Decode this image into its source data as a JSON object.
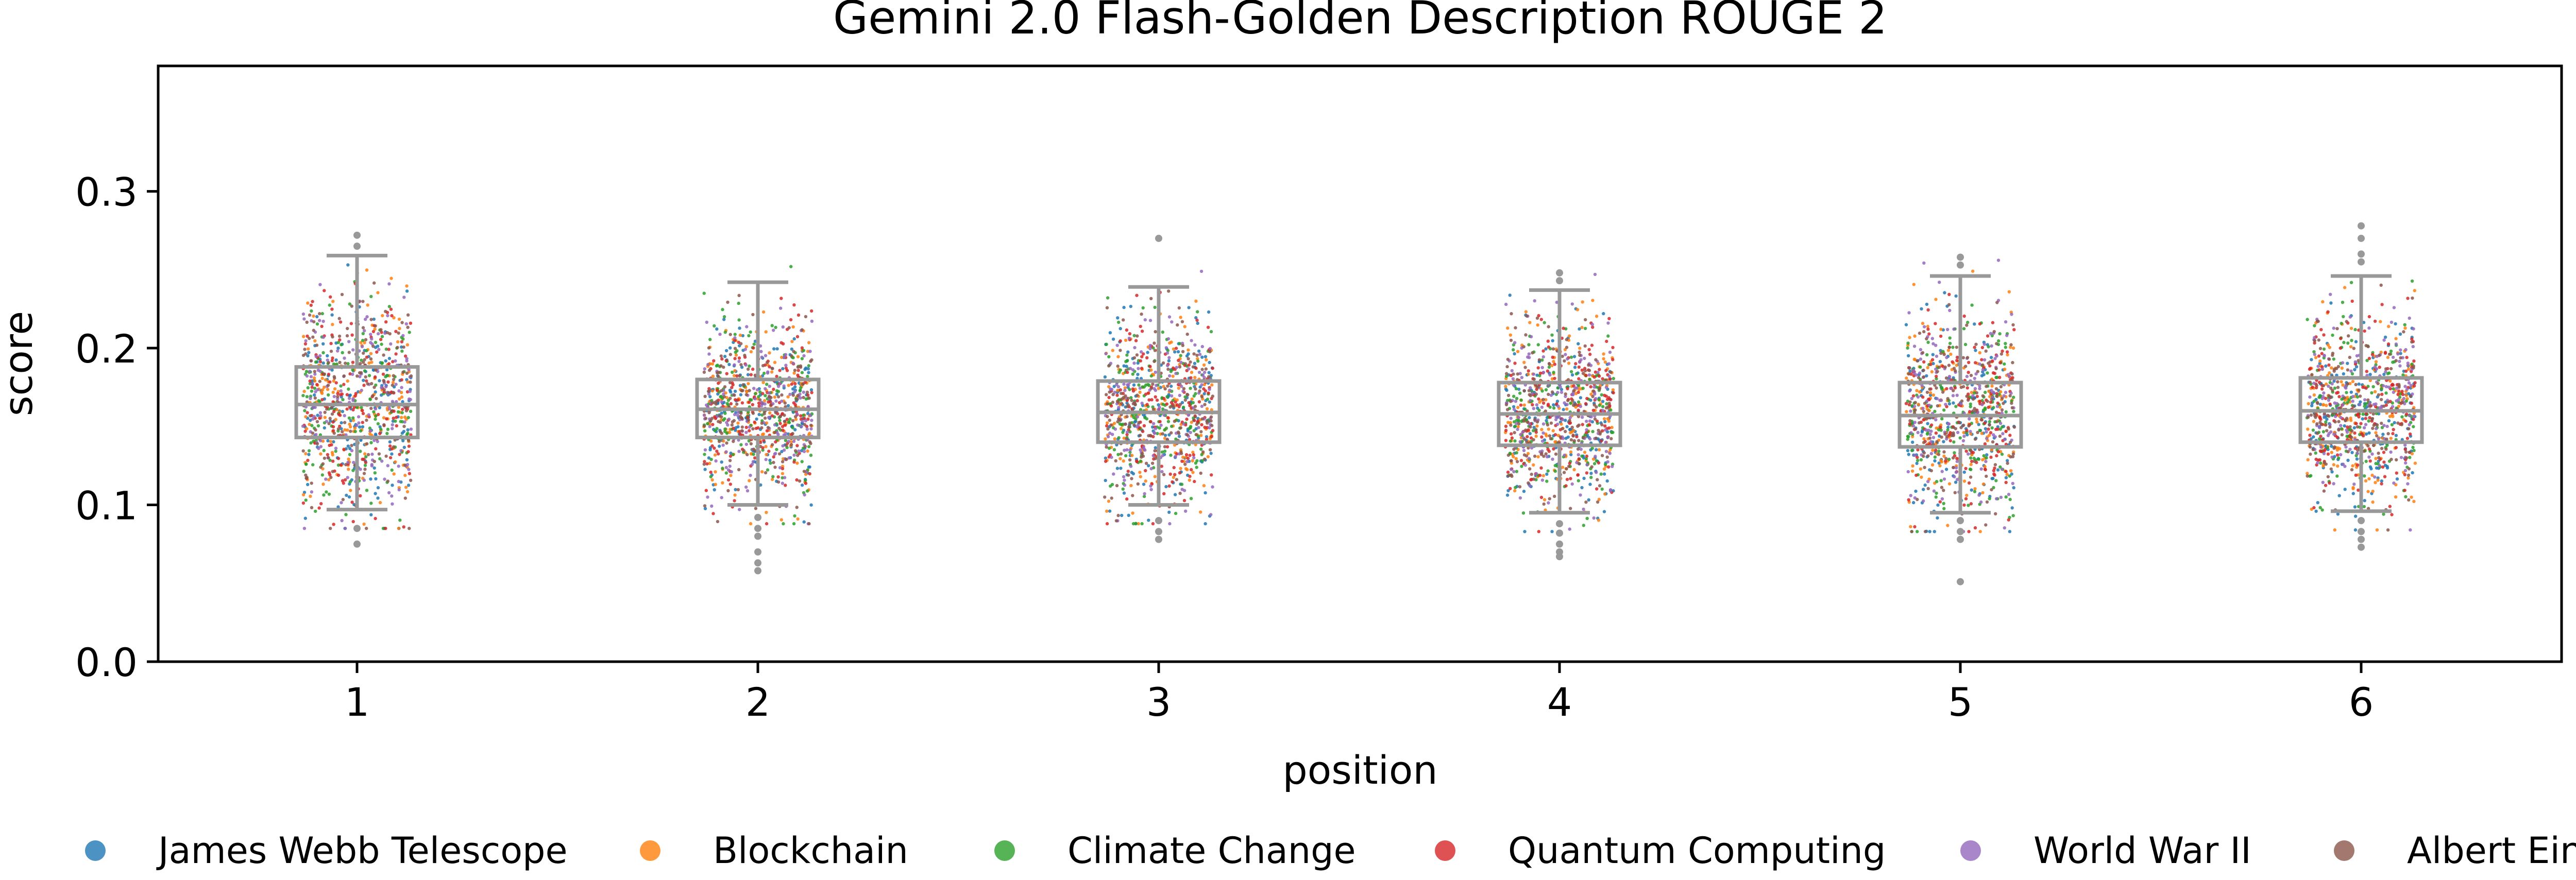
{
  "chart_data": {
    "type": "box",
    "title": "Gemini 2.0 Flash-Golden Description ROUGE 2",
    "xlabel": "position",
    "ylabel": "score",
    "ylim": [
      0.0,
      0.38
    ],
    "yticks": [
      0.0,
      0.1,
      0.2,
      0.3
    ],
    "ytick_labels": [
      "0.0",
      "0.1",
      "0.2",
      "0.3"
    ],
    "categories": [
      "1",
      "2",
      "3",
      "4",
      "5",
      "6"
    ],
    "grid": false,
    "legend_placement": "bottom",
    "box_color": "#999999",
    "boxes": [
      {
        "position": "1",
        "whisker_low": 0.097,
        "q1": 0.143,
        "median": 0.164,
        "q3": 0.188,
        "whisker_high": 0.259,
        "outliers": [
          0.265,
          0.272,
          0.085,
          0.075
        ]
      },
      {
        "position": "2",
        "whisker_low": 0.1,
        "q1": 0.143,
        "median": 0.161,
        "q3": 0.18,
        "whisker_high": 0.242,
        "outliers": [
          0.092,
          0.085,
          0.08,
          0.07,
          0.063,
          0.058
        ]
      },
      {
        "position": "3",
        "whisker_low": 0.1,
        "q1": 0.14,
        "median": 0.159,
        "q3": 0.179,
        "whisker_high": 0.239,
        "outliers": [
          0.27,
          0.09,
          0.083,
          0.078
        ]
      },
      {
        "position": "4",
        "whisker_low": 0.095,
        "q1": 0.138,
        "median": 0.158,
        "q3": 0.178,
        "whisker_high": 0.237,
        "outliers": [
          0.248,
          0.243,
          0.088,
          0.082,
          0.075,
          0.07,
          0.067
        ]
      },
      {
        "position": "5",
        "whisker_low": 0.095,
        "q1": 0.137,
        "median": 0.157,
        "q3": 0.178,
        "whisker_high": 0.246,
        "outliers": [
          0.258,
          0.253,
          0.09,
          0.083,
          0.078,
          0.051
        ]
      },
      {
        "position": "6",
        "whisker_low": 0.096,
        "q1": 0.14,
        "median": 0.16,
        "q3": 0.181,
        "whisker_high": 0.246,
        "outliers": [
          0.278,
          0.27,
          0.26,
          0.255,
          0.09,
          0.083,
          0.078,
          0.073
        ]
      }
    ],
    "series": [
      {
        "name": "James Webb Telescope",
        "color": "#1f77b4"
      },
      {
        "name": "Blockchain",
        "color": "#ff7f0e"
      },
      {
        "name": "Climate Change",
        "color": "#2ca02c"
      },
      {
        "name": "Quantum Computing",
        "color": "#d62728"
      },
      {
        "name": "World War II",
        "color": "#9467bd"
      },
      {
        "name": "Albert Einstein",
        "color": "#8c564b"
      }
    ]
  }
}
